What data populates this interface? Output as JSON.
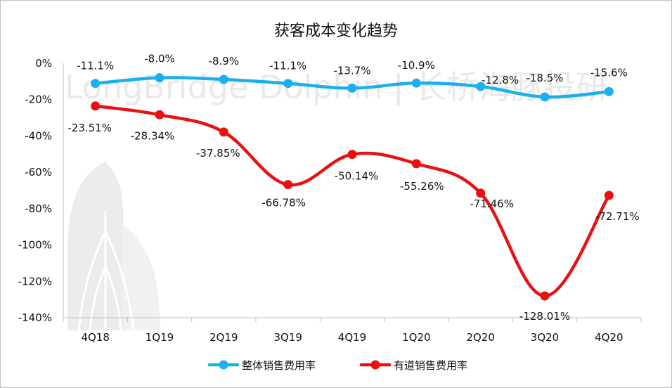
{
  "chart_data": {
    "type": "line",
    "title": "获客成本变化趋势",
    "watermark": "LongBridge Dolphin | 长桥海豚投研",
    "categories": [
      "4Q18",
      "1Q19",
      "2Q19",
      "3Q19",
      "4Q19",
      "1Q20",
      "2Q20",
      "3Q20",
      "4Q20"
    ],
    "ylim": [
      -140,
      0
    ],
    "yticks": [
      "0%",
      "-20%",
      "-40%",
      "-60%",
      "-80%",
      "-100%",
      "-120%",
      "-140%"
    ],
    "legend_position": "bottom",
    "grid": false,
    "series": [
      {
        "name": "整体销售费用率",
        "color": "#1ab0f0",
        "values": [
          -11.1,
          -8.0,
          -8.9,
          -11.1,
          -13.7,
          -10.9,
          -12.8,
          -18.5,
          -15.6
        ],
        "labels": [
          "-11.1%",
          "-8.0%",
          "-8.9%",
          "-11.1%",
          "-13.7%",
          "-10.9%",
          "-12.8%",
          "-18.5%",
          "-15.6%"
        ]
      },
      {
        "name": "有道销售费用率",
        "color": "#e81010",
        "values": [
          -23.51,
          -28.34,
          -37.85,
          -66.78,
          -50.14,
          -55.26,
          -71.46,
          -128.01,
          -72.71
        ],
        "labels": [
          "-23.51%",
          "-28.34%",
          "-37.85%",
          "-66.78%",
          "-50.14%",
          "-55.26%",
          "-71.46%",
          "-128.01%",
          "-72.71%"
        ]
      }
    ]
  }
}
